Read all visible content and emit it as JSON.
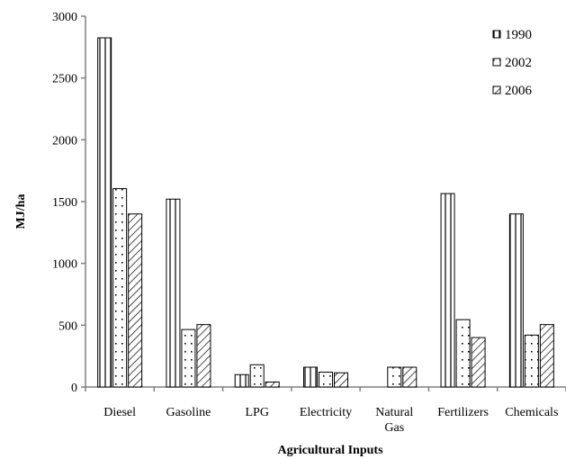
{
  "chart_data": {
    "type": "bar",
    "title": "",
    "xlabel": "Agricultural Inputs",
    "ylabel": "MJ/ha",
    "ylim": [
      0,
      3000
    ],
    "yticks": [
      0,
      500,
      1000,
      1500,
      2000,
      2500,
      3000
    ],
    "categories": [
      [
        "Diesel"
      ],
      [
        "Gasoline"
      ],
      [
        "LPG"
      ],
      [
        "Electricity"
      ],
      [
        "Natural",
        "Gas"
      ],
      [
        "Fertilizers"
      ],
      [
        "Chemicals"
      ]
    ],
    "series": [
      {
        "name": "1990",
        "pattern": "vertical-lines",
        "values": [
          2825,
          1520,
          100,
          160,
          0,
          1565,
          1400
        ]
      },
      {
        "name": "2002",
        "pattern": "dots",
        "values": [
          1605,
          465,
          180,
          120,
          160,
          545,
          420
        ]
      },
      {
        "name": "2006",
        "pattern": "diagonal-lines",
        "values": [
          1400,
          505,
          40,
          115,
          160,
          400,
          505
        ]
      }
    ],
    "grid": false,
    "legend_position": "top-right"
  }
}
